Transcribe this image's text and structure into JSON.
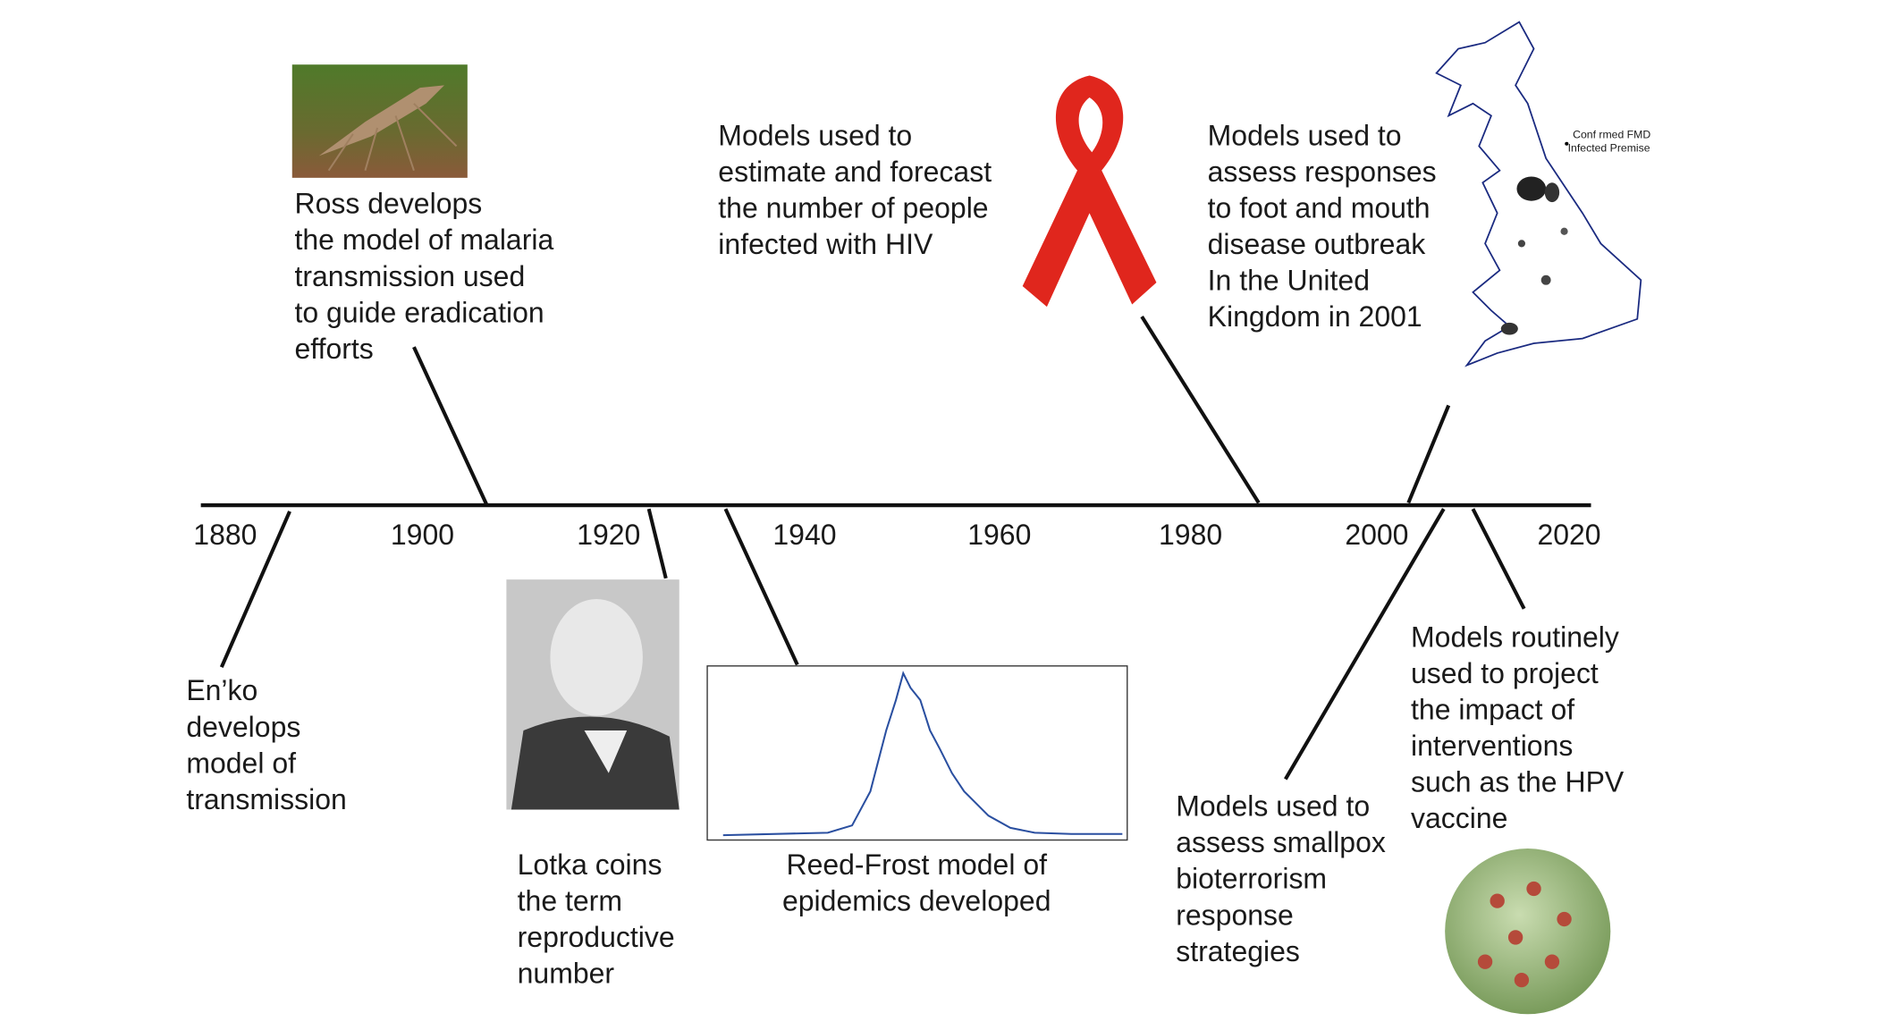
{
  "years": [
    1880,
    1900,
    1920,
    1940,
    1960,
    1980,
    2000,
    2020
  ],
  "events": [
    {
      "lines": [
        "Ross develops",
        "the model of malaria",
        "transmission used",
        "to guide eradication",
        "efforts"
      ]
    },
    {
      "lines": [
        "Models used to",
        "estimate and forecast",
        "the number of people",
        "infected with HIV"
      ]
    },
    {
      "lines": [
        "Models used to",
        "assess responses",
        "to foot and mouth",
        "disease outbreak",
        "In the United",
        "Kingdom in 2001"
      ]
    },
    {
      "lines": [
        "En’ko",
        "develops",
        "model of",
        "transmission"
      ]
    },
    {
      "lines": [
        "Lotka coins",
        "the term",
        "reproductive",
        "number"
      ]
    },
    {
      "lines": [
        "Reed-Frost model of",
        "epidemics developed"
      ]
    },
    {
      "lines": [
        "Models used to",
        "assess smallpox",
        "bioterrorism",
        "response",
        "strategies"
      ]
    },
    {
      "lines": [
        "Models routinely",
        "used to project",
        "the impact of",
        "interventions",
        "such as the HPV",
        "vaccine"
      ]
    }
  ],
  "map_legend": [
    "Conf rmed FMD",
    "Infected Premise"
  ]
}
